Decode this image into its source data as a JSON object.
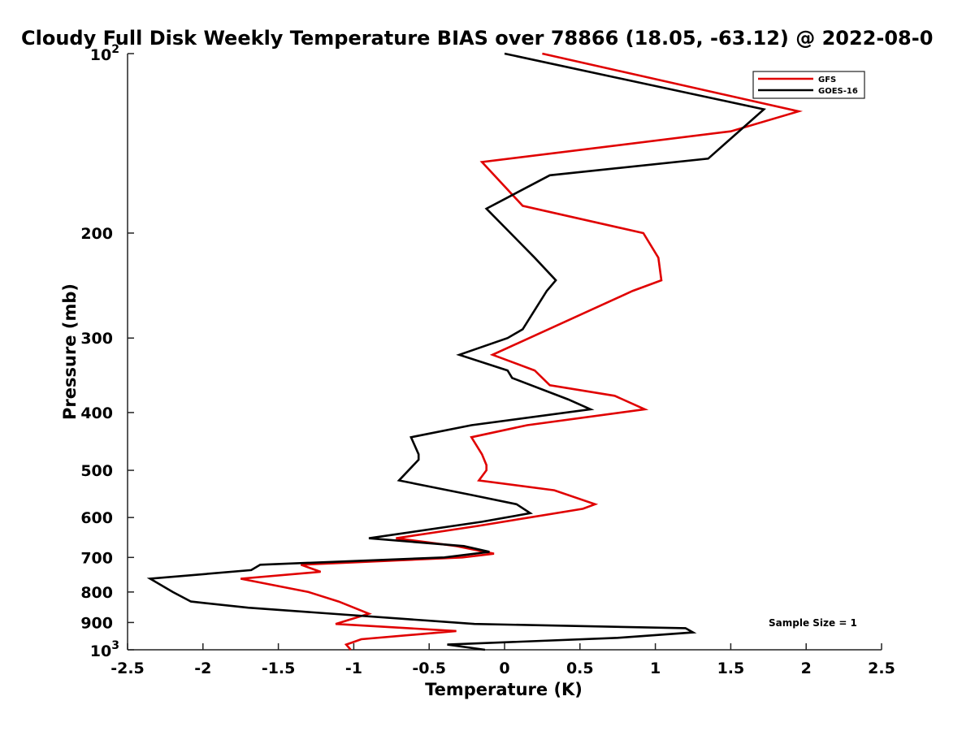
{
  "chart_data": {
    "type": "line",
    "title": "Cloudy Full Disk Weekly Temperature BIAS over 78866 (18.05, -63.12) @ 2022-08-0",
    "xlabel": "Temperature (K)",
    "ylabel": "Pressure (mb)",
    "xlim": [
      -2.5,
      2.5
    ],
    "ylim": [
      100,
      1000
    ],
    "yscale": "log",
    "y_reversed": true,
    "x_ticks": [
      -2.5,
      -2,
      -1.5,
      -1,
      -0.5,
      0,
      0.5,
      1,
      1.5,
      2,
      2.5
    ],
    "x_tick_labels": [
      "-2.5",
      "-2",
      "-1.5",
      "-1",
      "-0.5",
      "0",
      "0.5",
      "1",
      "1.5",
      "2",
      "2.5"
    ],
    "y_ticks": [
      200,
      300,
      400,
      500,
      600,
      700,
      800,
      900
    ],
    "y_tick_labels": [
      "200",
      "300",
      "400",
      "500",
      "600",
      "700",
      "800",
      "900"
    ],
    "y_top_label": {
      "base": "10",
      "exp": "2"
    },
    "y_bottom_label": {
      "base": "10",
      "exp": "3"
    },
    "legend_position": "top-right",
    "annotation": "Sample Size = 1",
    "series": [
      {
        "name": "GFS",
        "color": "#e00000",
        "points": [
          [
            0.25,
            100
          ],
          [
            1.95,
            125
          ],
          [
            1.5,
            135
          ],
          [
            -0.15,
            152
          ],
          [
            0.12,
            180
          ],
          [
            0.92,
            200
          ],
          [
            1.02,
            220
          ],
          [
            1.04,
            240
          ],
          [
            0.85,
            250
          ],
          [
            -0.08,
            320
          ],
          [
            0.2,
            340
          ],
          [
            0.3,
            360
          ],
          [
            0.73,
            375
          ],
          [
            0.93,
            395
          ],
          [
            0.15,
            420
          ],
          [
            -0.22,
            440
          ],
          [
            -0.15,
            470
          ],
          [
            -0.12,
            490
          ],
          [
            -0.12,
            500
          ],
          [
            -0.17,
            520
          ],
          [
            0.33,
            540
          ],
          [
            0.6,
            570
          ],
          [
            0.52,
            580
          ],
          [
            -0.18,
            620
          ],
          [
            -0.72,
            650
          ],
          [
            -0.32,
            670
          ],
          [
            -0.07,
            690
          ],
          [
            -0.28,
            700
          ],
          [
            -1.35,
            720
          ],
          [
            -1.22,
            740
          ],
          [
            -1.75,
            760
          ],
          [
            -1.3,
            800
          ],
          [
            -1.1,
            830
          ],
          [
            -0.9,
            870
          ],
          [
            -1.12,
            905
          ],
          [
            -0.32,
            930
          ],
          [
            -0.95,
            960
          ],
          [
            -1.05,
            980
          ],
          [
            -1.02,
            1000
          ]
        ]
      },
      {
        "name": "GOES-16",
        "color": "#000000",
        "points": [
          [
            0,
            100
          ],
          [
            1.72,
            124
          ],
          [
            1.35,
            150
          ],
          [
            0.3,
            160
          ],
          [
            -0.12,
            182
          ],
          [
            0.2,
            220
          ],
          [
            0.34,
            240
          ],
          [
            0.28,
            250
          ],
          [
            0.12,
            290
          ],
          [
            0.02,
            300
          ],
          [
            -0.3,
            320
          ],
          [
            0.02,
            340
          ],
          [
            0.05,
            350
          ],
          [
            0.42,
            380
          ],
          [
            0.57,
            395
          ],
          [
            -0.22,
            420
          ],
          [
            -0.62,
            440
          ],
          [
            -0.57,
            470
          ],
          [
            -0.57,
            480
          ],
          [
            -0.7,
            520
          ],
          [
            -0.22,
            550
          ],
          [
            0.08,
            570
          ],
          [
            0.17,
            590
          ],
          [
            -0.15,
            610
          ],
          [
            -0.9,
            650
          ],
          [
            -0.27,
            670
          ],
          [
            -0.1,
            685
          ],
          [
            -0.4,
            700
          ],
          [
            -1.62,
            720
          ],
          [
            -1.68,
            735
          ],
          [
            -2.35,
            760
          ],
          [
            -2.2,
            800
          ],
          [
            -2.08,
            830
          ],
          [
            -1.7,
            850
          ],
          [
            -0.2,
            905
          ],
          [
            1.2,
            920
          ],
          [
            1.25,
            935
          ],
          [
            0.75,
            955
          ],
          [
            -0.38,
            980
          ],
          [
            -0.13,
            1000
          ]
        ]
      }
    ]
  }
}
